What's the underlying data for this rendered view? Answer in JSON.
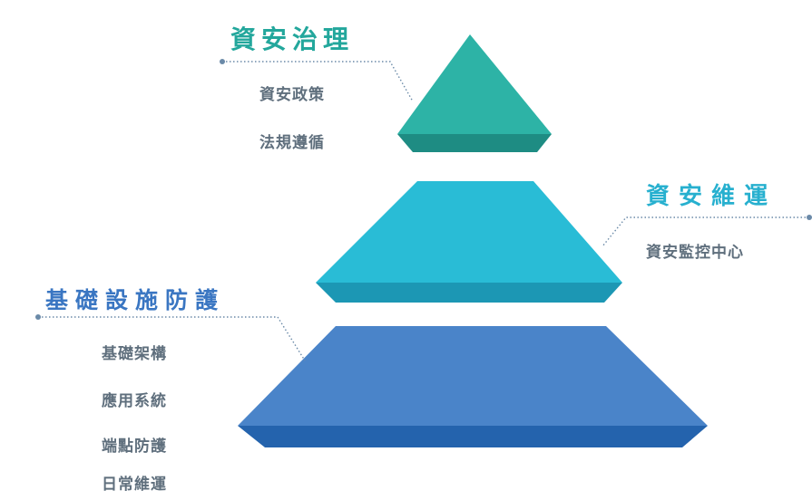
{
  "colors": {
    "governance_top": "#2db3a6",
    "governance_side": "#1e8c83",
    "maintenance_top": "#29bcd6",
    "maintenance_side": "#1c97b4",
    "infrastructure_top": "#4a84c9",
    "infrastructure_side": "#2463ad",
    "heading_governance": "#23a79c",
    "heading_maintenance": "#27b0cf",
    "heading_infrastructure": "#3a76c2",
    "item_text": "#5f6f7d",
    "leader_line": "#6b8aa8"
  },
  "tiers": [
    {
      "heading": "資安治理",
      "items": [
        "資安政策",
        "法規遵循"
      ]
    },
    {
      "heading": "資安維運",
      "items": [
        "資安監控中心"
      ]
    },
    {
      "heading": "基礎設施防護",
      "items": [
        "基礎架構",
        "應用系統",
        "端點防護",
        "日常維運"
      ]
    }
  ]
}
